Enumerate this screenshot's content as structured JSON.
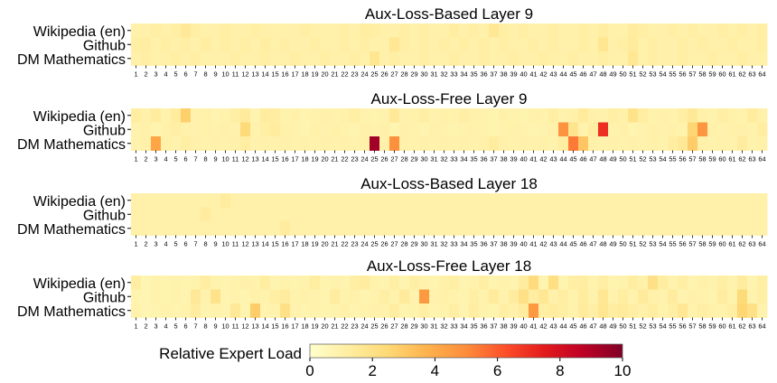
{
  "chart_data": [
    {
      "type": "heatmap",
      "title": "Aux-Loss-Based Layer 9",
      "rows": [
        "Wikipedia (en)",
        "Github",
        "DM Mathematics"
      ],
      "columns": [
        1,
        2,
        3,
        4,
        5,
        6,
        7,
        8,
        9,
        10,
        11,
        12,
        13,
        14,
        15,
        16,
        17,
        18,
        19,
        20,
        21,
        22,
        23,
        24,
        25,
        26,
        27,
        28,
        29,
        30,
        31,
        32,
        33,
        34,
        35,
        36,
        37,
        38,
        39,
        40,
        41,
        42,
        43,
        44,
        45,
        46,
        47,
        48,
        49,
        50,
        51,
        52,
        53,
        54,
        55,
        56,
        57,
        58,
        59,
        60,
        61,
        62,
        63,
        64
      ],
      "values": [
        [
          1.0,
          1.0,
          1.1,
          1.0,
          1.1,
          1.5,
          1.1,
          1.0,
          1.0,
          1.1,
          1.0,
          1.0,
          1.1,
          1.0,
          1.0,
          1.0,
          1.0,
          1.1,
          1.0,
          1.0,
          1.0,
          1.1,
          1.0,
          1.2,
          1.1,
          1.0,
          1.0,
          1.1,
          1.0,
          1.1,
          1.0,
          1.0,
          1.2,
          1.0,
          1.1,
          1.0,
          1.6,
          1.1,
          1.0,
          1.1,
          1.0,
          1.0,
          1.1,
          1.0,
          1.0,
          1.1,
          1.0,
          1.2,
          1.0,
          1.0,
          1.3,
          1.1,
          1.0,
          1.0,
          1.1,
          1.0,
          1.1,
          1.0,
          1.0,
          1.1,
          1.0,
          1.1,
          1.0,
          1.1
        ],
        [
          1.1,
          1.2,
          1.0,
          1.1,
          1.0,
          1.1,
          1.0,
          1.2,
          1.0,
          1.1,
          1.0,
          1.1,
          1.0,
          1.2,
          1.0,
          1.1,
          1.0,
          1.0,
          1.1,
          1.0,
          1.0,
          1.1,
          1.0,
          1.1,
          1.0,
          1.0,
          1.6,
          1.1,
          1.0,
          1.1,
          1.0,
          1.1,
          1.0,
          1.1,
          1.0,
          1.1,
          1.0,
          1.1,
          1.0,
          1.0,
          1.1,
          1.0,
          1.1,
          1.0,
          1.0,
          1.1,
          1.0,
          1.7,
          1.0,
          1.1,
          1.4,
          1.0,
          1.1,
          1.0,
          1.0,
          1.1,
          1.0,
          1.1,
          1.0,
          1.0,
          1.1,
          1.0,
          1.0,
          1.1
        ],
        [
          1.0,
          1.1,
          1.0,
          1.0,
          1.1,
          1.0,
          1.1,
          1.0,
          1.0,
          1.0,
          1.1,
          1.0,
          1.0,
          1.1,
          1.0,
          1.0,
          1.1,
          1.0,
          1.0,
          1.1,
          1.0,
          1.0,
          1.1,
          1.0,
          1.7,
          1.0,
          1.1,
          1.0,
          1.0,
          1.1,
          1.0,
          1.0,
          1.1,
          1.0,
          1.0,
          1.1,
          1.0,
          1.0,
          1.1,
          1.0,
          1.0,
          1.1,
          1.0,
          1.0,
          1.1,
          1.0,
          1.0,
          1.1,
          1.0,
          1.0,
          1.6,
          1.0,
          1.1,
          1.0,
          1.0,
          1.1,
          1.0,
          1.0,
          1.1,
          1.0,
          1.0,
          1.1,
          1.0,
          1.0
        ]
      ]
    },
    {
      "type": "heatmap",
      "title": "Aux-Loss-Free Layer 9",
      "rows": [
        "Wikipedia (en)",
        "Github",
        "DM Mathematics"
      ],
      "columns": [
        1,
        2,
        3,
        4,
        5,
        6,
        7,
        8,
        9,
        10,
        11,
        12,
        13,
        14,
        15,
        16,
        17,
        18,
        19,
        20,
        21,
        22,
        23,
        24,
        25,
        26,
        27,
        28,
        29,
        30,
        31,
        32,
        33,
        34,
        35,
        36,
        37,
        38,
        39,
        40,
        41,
        42,
        43,
        44,
        45,
        46,
        47,
        48,
        49,
        50,
        51,
        52,
        53,
        54,
        55,
        56,
        57,
        58,
        59,
        60,
        61,
        62,
        63,
        64
      ],
      "values": [
        [
          1.2,
          1.0,
          1.3,
          0.9,
          1.3,
          2.8,
          0.9,
          1.0,
          0.8,
          0.9,
          1.1,
          1.4,
          0.8,
          1.3,
          1.2,
          0.9,
          1.0,
          0.8,
          0.9,
          1.0,
          0.9,
          1.0,
          1.1,
          0.9,
          0.8,
          0.9,
          1.5,
          0.9,
          1.0,
          1.1,
          0.9,
          1.0,
          0.9,
          1.1,
          1.0,
          0.9,
          0.8,
          1.0,
          0.9,
          0.8,
          1.0,
          0.9,
          1.1,
          0.9,
          1.0,
          1.4,
          1.0,
          0.9,
          1.1,
          1.0,
          1.9,
          1.2,
          0.9,
          1.0,
          0.9,
          1.1,
          1.5,
          1.0,
          0.9,
          1.1,
          1.0,
          0.9,
          1.3,
          1.0
        ],
        [
          0.9,
          1.0,
          0.8,
          1.0,
          1.1,
          1.0,
          0.9,
          1.0,
          0.9,
          1.0,
          0.9,
          2.4,
          0.9,
          1.1,
          1.3,
          1.0,
          0.9,
          0.8,
          1.0,
          0.9,
          1.0,
          0.9,
          0.8,
          1.0,
          0.9,
          1.0,
          0.8,
          1.0,
          0.9,
          0.8,
          1.0,
          0.9,
          0.8,
          0.9,
          1.0,
          0.9,
          0.8,
          0.9,
          1.0,
          0.9,
          0.8,
          0.9,
          1.0,
          4.8,
          1.8,
          0.9,
          1.2,
          7.0,
          0.9,
          1.0,
          0.8,
          0.9,
          1.0,
          0.9,
          1.0,
          0.9,
          2.6,
          4.7,
          1.0,
          0.9,
          1.0,
          1.0,
          0.9,
          1.2
        ],
        [
          0.9,
          1.0,
          4.2,
          1.0,
          0.9,
          1.1,
          1.0,
          0.9,
          1.0,
          0.9,
          1.0,
          1.2,
          0.9,
          1.0,
          0.9,
          1.0,
          0.9,
          1.0,
          0.9,
          1.0,
          0.9,
          1.0,
          0.9,
          1.0,
          9.3,
          1.0,
          4.9,
          1.0,
          0.9,
          1.0,
          0.9,
          1.0,
          0.9,
          1.0,
          0.9,
          1.0,
          1.3,
          1.0,
          0.9,
          1.0,
          0.9,
          1.0,
          0.9,
          1.2,
          5.4,
          3.1,
          1.0,
          0.9,
          1.0,
          0.9,
          1.0,
          0.9,
          1.0,
          0.9,
          1.2,
          1.5,
          2.9,
          1.0,
          0.9,
          1.0,
          0.9,
          1.3,
          0.9,
          1.0
        ]
      ]
    },
    {
      "type": "heatmap",
      "title": "Aux-Loss-Based Layer 18",
      "rows": [
        "Wikipedia (en)",
        "Github",
        "DM Mathematics"
      ],
      "columns": [
        1,
        2,
        3,
        4,
        5,
        6,
        7,
        8,
        9,
        10,
        11,
        12,
        13,
        14,
        15,
        16,
        17,
        18,
        19,
        20,
        21,
        22,
        23,
        24,
        25,
        26,
        27,
        28,
        29,
        30,
        31,
        32,
        33,
        34,
        35,
        36,
        37,
        38,
        39,
        40,
        41,
        42,
        43,
        44,
        45,
        46,
        47,
        48,
        49,
        50,
        51,
        52,
        53,
        54,
        55,
        56,
        57,
        58,
        59,
        60,
        61,
        62,
        63,
        64
      ],
      "values": [
        [
          1.0,
          1.0,
          1.0,
          1.0,
          1.0,
          1.0,
          1.0,
          1.0,
          1.0,
          1.3,
          1.0,
          1.0,
          1.0,
          1.0,
          1.0,
          1.0,
          1.0,
          1.0,
          1.0,
          1.0,
          1.0,
          1.0,
          1.0,
          1.0,
          1.0,
          1.0,
          1.0,
          1.0,
          1.0,
          1.0,
          1.0,
          1.0,
          1.0,
          1.0,
          1.0,
          1.0,
          1.0,
          1.0,
          1.0,
          1.0,
          1.0,
          1.0,
          1.0,
          1.0,
          1.0,
          1.0,
          1.0,
          1.0,
          1.0,
          1.0,
          1.0,
          1.0,
          1.0,
          1.0,
          1.0,
          1.0,
          1.0,
          1.0,
          1.0,
          1.0,
          1.0,
          1.0,
          1.0,
          1.0
        ],
        [
          1.0,
          1.0,
          1.0,
          1.0,
          1.0,
          1.0,
          1.0,
          1.3,
          1.0,
          1.0,
          1.0,
          1.0,
          1.0,
          1.0,
          1.0,
          1.0,
          1.0,
          1.0,
          1.0,
          1.0,
          1.0,
          1.0,
          1.0,
          1.0,
          1.0,
          1.0,
          1.0,
          1.0,
          1.0,
          1.0,
          1.0,
          1.0,
          1.0,
          1.0,
          1.0,
          1.0,
          1.0,
          1.0,
          1.0,
          1.0,
          1.0,
          1.0,
          1.0,
          1.0,
          1.0,
          1.0,
          1.0,
          1.0,
          1.0,
          1.0,
          1.0,
          1.0,
          1.0,
          1.0,
          1.0,
          1.0,
          1.0,
          1.0,
          1.0,
          1.0,
          1.0,
          1.0,
          1.0,
          1.0
        ],
        [
          1.0,
          1.0,
          1.0,
          1.0,
          1.0,
          1.0,
          1.0,
          1.0,
          1.0,
          1.0,
          1.0,
          1.0,
          1.0,
          1.0,
          1.0,
          1.3,
          1.0,
          1.0,
          1.0,
          1.0,
          1.0,
          1.0,
          1.0,
          1.0,
          1.0,
          1.0,
          1.0,
          1.0,
          1.0,
          1.0,
          1.0,
          1.0,
          1.0,
          1.0,
          1.0,
          1.0,
          1.0,
          1.0,
          1.0,
          1.0,
          1.0,
          1.0,
          1.0,
          1.0,
          1.0,
          1.0,
          1.0,
          1.0,
          1.0,
          1.0,
          1.0,
          1.0,
          1.0,
          1.0,
          1.0,
          1.0,
          1.0,
          1.0,
          1.0,
          1.0,
          1.0,
          1.0,
          1.0,
          1.0
        ]
      ]
    },
    {
      "type": "heatmap",
      "title": "Aux-Loss-Free Layer 18",
      "rows": [
        "Wikipedia (en)",
        "Github",
        "DM Mathematics"
      ],
      "columns": [
        1,
        2,
        3,
        4,
        5,
        6,
        7,
        8,
        9,
        10,
        11,
        12,
        13,
        14,
        15,
        16,
        17,
        18,
        19,
        20,
        21,
        22,
        23,
        24,
        25,
        26,
        27,
        28,
        29,
        30,
        31,
        32,
        33,
        34,
        35,
        36,
        37,
        38,
        39,
        40,
        41,
        42,
        43,
        44,
        45,
        46,
        47,
        48,
        49,
        50,
        51,
        52,
        53,
        54,
        55,
        56,
        57,
        58,
        59,
        60,
        61,
        62,
        63,
        64
      ],
      "values": [
        [
          1.2,
          0.7,
          0.9,
          0.8,
          0.9,
          0.8,
          0.9,
          1.2,
          0.9,
          0.8,
          0.9,
          1.0,
          0.9,
          1.2,
          0.8,
          0.9,
          0.8,
          0.9,
          1.2,
          0.8,
          0.9,
          0.8,
          1.1,
          1.3,
          0.9,
          0.8,
          1.1,
          0.8,
          1.1,
          0.9,
          0.8,
          1.0,
          1.1,
          0.8,
          0.9,
          1.1,
          0.8,
          0.9,
          0.8,
          1.3,
          2.3,
          0.8,
          2.1,
          0.8,
          1.1,
          1.2,
          0.9,
          1.1,
          0.8,
          0.9,
          1.2,
          1.0,
          2.0,
          1.2,
          0.9,
          1.1,
          0.8,
          1.0,
          0.9,
          1.1,
          0.9,
          1.3,
          0.8,
          1.1
        ],
        [
          0.8,
          0.7,
          0.9,
          0.8,
          0.9,
          0.8,
          1.5,
          0.9,
          1.9,
          0.8,
          0.9,
          0.8,
          1.0,
          0.9,
          1.1,
          1.3,
          0.9,
          1.0,
          0.9,
          0.8,
          1.3,
          0.9,
          1.0,
          0.8,
          0.9,
          1.1,
          0.9,
          1.4,
          0.9,
          4.6,
          0.9,
          1.0,
          0.9,
          0.8,
          1.1,
          0.9,
          1.4,
          0.9,
          1.3,
          2.0,
          1.2,
          1.6,
          1.0,
          1.2,
          0.9,
          1.3,
          0.9,
          1.6,
          0.9,
          1.2,
          0.9,
          1.4,
          1.0,
          0.9,
          1.3,
          0.8,
          1.0,
          0.9,
          0.8,
          1.3,
          0.9,
          2.4,
          0.9,
          1.1
        ],
        [
          0.9,
          0.7,
          0.8,
          0.9,
          0.8,
          0.9,
          1.3,
          0.8,
          0.9,
          0.8,
          1.5,
          0.8,
          2.9,
          0.8,
          0.9,
          2.0,
          0.9,
          0.8,
          0.9,
          0.8,
          0.9,
          1.0,
          0.8,
          0.9,
          1.0,
          0.9,
          1.2,
          0.8,
          0.9,
          1.1,
          0.8,
          0.9,
          1.1,
          0.8,
          1.2,
          0.9,
          0.8,
          1.1,
          1.0,
          1.3,
          4.6,
          1.1,
          1.3,
          1.1,
          0.9,
          1.4,
          1.1,
          1.7,
          1.2,
          1.4,
          1.1,
          1.0,
          1.2,
          0.9,
          1.1,
          1.6,
          0.9,
          1.1,
          1.0,
          0.9,
          1.1,
          2.6,
          2.0,
          0.9
        ]
      ]
    }
  ],
  "colorbar": {
    "label": "Relative Expert Load",
    "ticks": [
      0,
      2,
      4,
      6,
      8,
      10
    ],
    "range": [
      0,
      10
    ],
    "colormap": "YlOrRd",
    "stops": [
      "#ffffcc",
      "#ffeda0",
      "#fed976",
      "#feb24c",
      "#fd8d3c",
      "#fc4e2a",
      "#e31a1c",
      "#bd0026",
      "#800026"
    ]
  }
}
